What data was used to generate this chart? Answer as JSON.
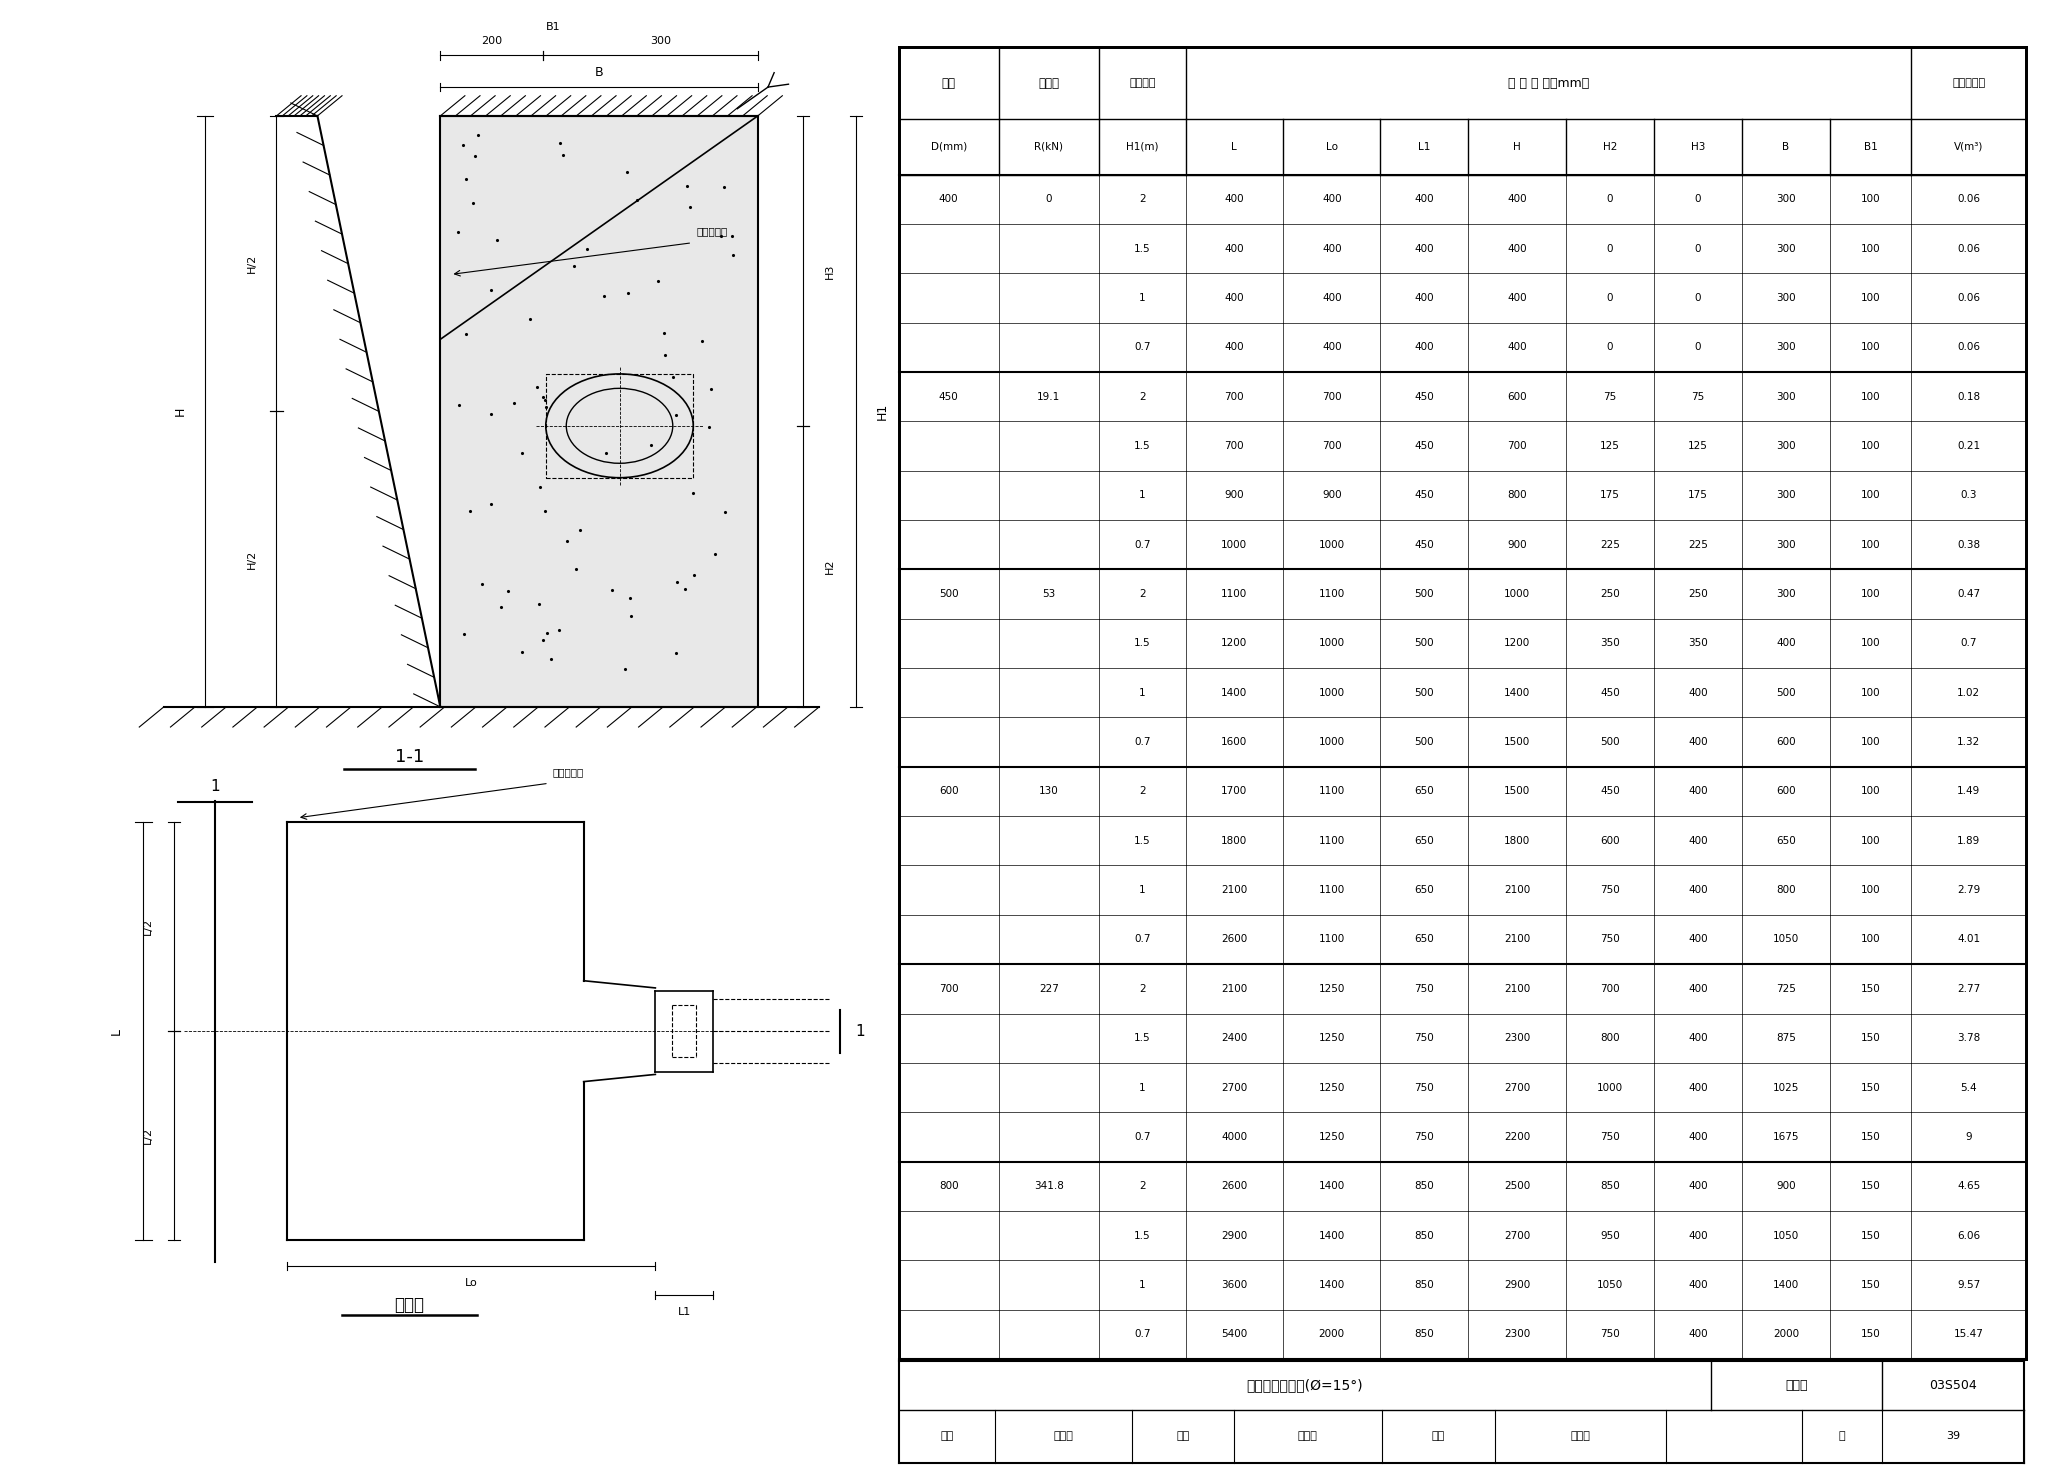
{
  "title": "水平管墩支墩图(Ø=15°)",
  "figure_number": "图集号",
  "figure_id": "03S504",
  "page_label": "页",
  "page_number": "39",
  "col_header1": [
    "管径",
    "作用力",
    "管顶覆土",
    "支 墓 尺 寸（mm）",
    "混凝土用量"
  ],
  "col_header2": [
    "D(mm)",
    "R(kN)",
    "H1(m)",
    "L",
    "Lo",
    "L1",
    "H",
    "H2",
    "H3",
    "B",
    "B1",
    "V(m³)"
  ],
  "table_data": [
    [
      "400",
      "0",
      "2",
      "400",
      "400",
      "400",
      "400",
      "0",
      "0",
      "300",
      "100",
      "0.06"
    ],
    [
      "",
      "",
      "1.5",
      "400",
      "400",
      "400",
      "400",
      "0",
      "0",
      "300",
      "100",
      "0.06"
    ],
    [
      "",
      "",
      "1",
      "400",
      "400",
      "400",
      "400",
      "0",
      "0",
      "300",
      "100",
      "0.06"
    ],
    [
      "",
      "",
      "0.7",
      "400",
      "400",
      "400",
      "400",
      "0",
      "0",
      "300",
      "100",
      "0.06"
    ],
    [
      "450",
      "19.1",
      "2",
      "700",
      "700",
      "450",
      "600",
      "75",
      "75",
      "300",
      "100",
      "0.18"
    ],
    [
      "",
      "",
      "1.5",
      "700",
      "700",
      "450",
      "700",
      "125",
      "125",
      "300",
      "100",
      "0.21"
    ],
    [
      "",
      "",
      "1",
      "900",
      "900",
      "450",
      "800",
      "175",
      "175",
      "300",
      "100",
      "0.3"
    ],
    [
      "",
      "",
      "0.7",
      "1000",
      "1000",
      "450",
      "900",
      "225",
      "225",
      "300",
      "100",
      "0.38"
    ],
    [
      "500",
      "53",
      "2",
      "1100",
      "1100",
      "500",
      "1000",
      "250",
      "250",
      "300",
      "100",
      "0.47"
    ],
    [
      "",
      "",
      "1.5",
      "1200",
      "1000",
      "500",
      "1200",
      "350",
      "350",
      "400",
      "100",
      "0.7"
    ],
    [
      "",
      "",
      "1",
      "1400",
      "1000",
      "500",
      "1400",
      "450",
      "400",
      "500",
      "100",
      "1.02"
    ],
    [
      "",
      "",
      "0.7",
      "1600",
      "1000",
      "500",
      "1500",
      "500",
      "400",
      "600",
      "100",
      "1.32"
    ],
    [
      "600",
      "130",
      "2",
      "1700",
      "1100",
      "650",
      "1500",
      "450",
      "400",
      "600",
      "100",
      "1.49"
    ],
    [
      "",
      "",
      "1.5",
      "1800",
      "1100",
      "650",
      "1800",
      "600",
      "400",
      "650",
      "100",
      "1.89"
    ],
    [
      "",
      "",
      "1",
      "2100",
      "1100",
      "650",
      "2100",
      "750",
      "400",
      "800",
      "100",
      "2.79"
    ],
    [
      "",
      "",
      "0.7",
      "2600",
      "1100",
      "650",
      "2100",
      "750",
      "400",
      "1050",
      "100",
      "4.01"
    ],
    [
      "700",
      "227",
      "2",
      "2100",
      "1250",
      "750",
      "2100",
      "700",
      "400",
      "725",
      "150",
      "2.77"
    ],
    [
      "",
      "",
      "1.5",
      "2400",
      "1250",
      "750",
      "2300",
      "800",
      "400",
      "875",
      "150",
      "3.78"
    ],
    [
      "",
      "",
      "1",
      "2700",
      "1250",
      "750",
      "2700",
      "1000",
      "400",
      "1025",
      "150",
      "5.4"
    ],
    [
      "",
      "",
      "0.7",
      "4000",
      "1250",
      "750",
      "2200",
      "750",
      "400",
      "1675",
      "150",
      "9"
    ],
    [
      "800",
      "341.8",
      "2",
      "2600",
      "1400",
      "850",
      "2500",
      "850",
      "400",
      "900",
      "150",
      "4.65"
    ],
    [
      "",
      "",
      "1.5",
      "2900",
      "1400",
      "850",
      "2700",
      "950",
      "400",
      "1050",
      "150",
      "6.06"
    ],
    [
      "",
      "",
      "1",
      "3600",
      "1400",
      "850",
      "2900",
      "1050",
      "400",
      "1400",
      "150",
      "9.57"
    ],
    [
      "",
      "",
      "0.7",
      "5400",
      "2000",
      "850",
      "2300",
      "750",
      "400",
      "2000",
      "150",
      "15.47"
    ]
  ],
  "bottom_row": [
    "审核",
    "贺旭晨",
    "校对",
    "刘永鹏",
    "设计",
    "宋建红"
  ]
}
